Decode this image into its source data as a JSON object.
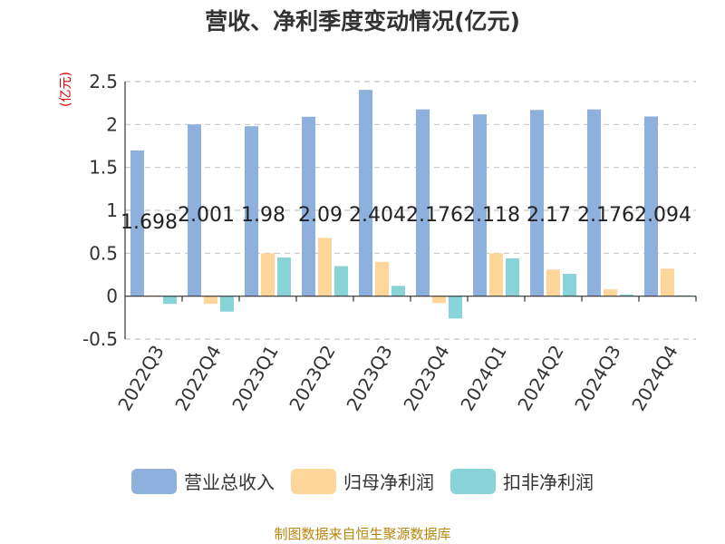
{
  "title": "营收、净利季度变动情况(亿元)",
  "unit_label": "(亿元)",
  "source": "制图数据来自恒生聚源数据库",
  "chart_data": {
    "type": "bar",
    "categories": [
      "2022Q3",
      "2022Q4",
      "2023Q1",
      "2023Q2",
      "2023Q3",
      "2023Q4",
      "2024Q1",
      "2024Q2",
      "2024Q3",
      "2024Q4"
    ],
    "series": [
      {
        "name": "营业总收入",
        "color": "#8eb0dd",
        "values": [
          1.698,
          2.001,
          1.98,
          2.09,
          2.404,
          2.176,
          2.118,
          2.17,
          2.176,
          2.094
        ]
      },
      {
        "name": "归母净利润",
        "color": "#ffd699",
        "values": [
          0.01,
          -0.09,
          0.5,
          0.68,
          0.4,
          -0.08,
          0.5,
          0.31,
          0.08,
          0.32
        ]
      },
      {
        "name": "扣非净利润",
        "color": "#88d3d7",
        "values": [
          -0.09,
          -0.18,
          0.45,
          0.35,
          0.12,
          -0.26,
          0.44,
          0.26,
          0.02,
          0.01
        ]
      }
    ],
    "data_labels": [
      "1.698",
      "2.001",
      "1.98",
      "2.09",
      "2.404",
      "2.176",
      "2.118",
      "2.17",
      "2.176",
      "2.094"
    ],
    "ylim": [
      -0.5,
      2.5
    ],
    "yticks": [
      -0.5,
      0,
      0.5,
      1,
      1.5,
      2,
      2.5
    ],
    "ytick_labels": [
      "-0.5",
      "0",
      "0.5",
      "1",
      "1.5",
      "2",
      "2.5"
    ],
    "grid": true,
    "legend_position": "bottom"
  }
}
